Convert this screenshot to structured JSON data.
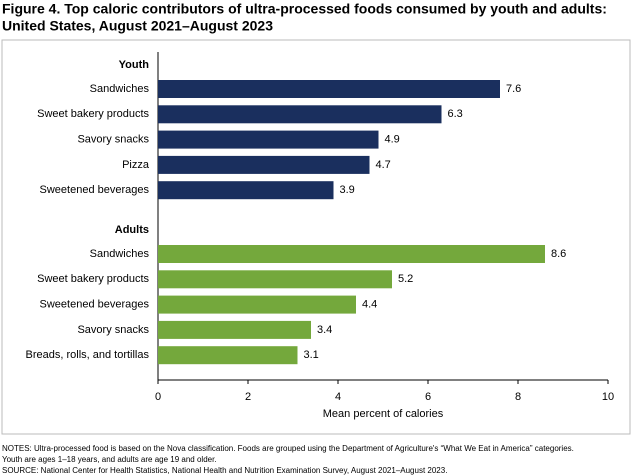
{
  "chart_data": {
    "type": "bar",
    "title": [
      "Figure 4. Top caloric contributors of ultra-processed foods consumed by youth and adults:",
      "United States, August 2021–August 2023"
    ],
    "series": [
      {
        "name": "Youth",
        "color": "#1a2f5e",
        "categories": [
          "Sandwiches",
          "Sweet bakery products",
          "Savory snacks",
          "Pizza",
          "Sweetened beverages"
        ],
        "values": [
          7.6,
          6.3,
          4.9,
          4.7,
          3.9
        ]
      },
      {
        "name": "Adults",
        "color": "#74a83c",
        "categories": [
          "Sandwiches",
          "Sweet bakery products",
          "Sweetened beverages",
          "Savory snacks",
          "Breads, rolls, and tortillas"
        ],
        "values": [
          8.6,
          5.2,
          4.4,
          3.4,
          3.1
        ]
      }
    ],
    "xlim": [
      0,
      10
    ],
    "xticks": [
      0,
      2,
      4,
      6,
      8,
      10
    ],
    "xlabel": "Mean percent of calories",
    "notes": [
      "NOTES: Ultra-processed food is based on the Nova classification. Foods are grouped using the Department of Agriculture's “What We Eat in America” categories.",
      "Youth are ages 1–18 years, and adults are age 19 and older.",
      "SOURCE: National Center for Health Statistics, National Health and Nutrition Examination Survey, August 2021–August 2023."
    ]
  }
}
